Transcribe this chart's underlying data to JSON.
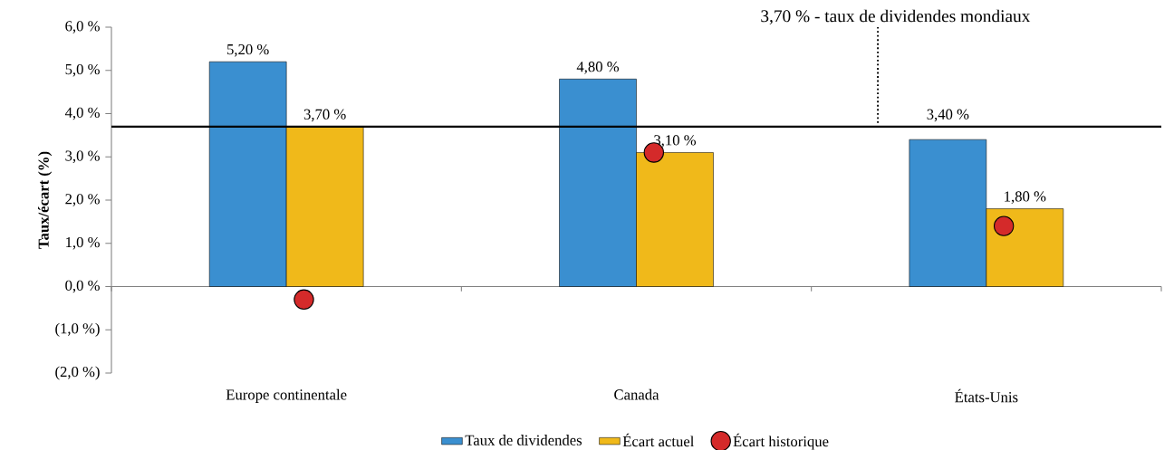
{
  "chart_data": {
    "type": "bar",
    "ylabel": "Taux/écart (%)",
    "categories": [
      "Europe continentale",
      "Canada",
      "États-Unis"
    ],
    "series": [
      {
        "name": "Taux de dividendes",
        "color": "#3a8fd0",
        "values": [
          5.2,
          4.8,
          3.4
        ],
        "value_labels": [
          "5,20 %",
          "4,80 %",
          "3,40 %"
        ]
      },
      {
        "name": "Écart actuel",
        "color": "#f0b91a",
        "values": [
          3.7,
          3.1,
          1.8
        ],
        "value_labels": [
          "3,70 %",
          "3,10 %",
          "1,80 %"
        ]
      },
      {
        "name": "Écart historique",
        "type": "scatter",
        "color": "#d42a2a",
        "marker": "circle",
        "x": [
          "Europe continentale",
          "Canada",
          "États-Unis"
        ],
        "values": [
          -0.3,
          3.1,
          1.4
        ]
      }
    ],
    "ylim": [
      -2,
      6
    ],
    "yticks": [
      {
        "value": -2,
        "label": "(2,0 %)"
      },
      {
        "value": -1,
        "label": "(1,0 %)"
      },
      {
        "value": 0,
        "label": "0,0 %"
      },
      {
        "value": 1,
        "label": "1,0 %"
      },
      {
        "value": 2,
        "label": "2,0 %"
      },
      {
        "value": 3,
        "label": "3,0 %"
      },
      {
        "value": 4,
        "label": "4,0 %"
      },
      {
        "value": 5,
        "label": "5,0 %"
      },
      {
        "value": 6,
        "label": "6,0 %"
      }
    ],
    "ref_lines": [
      {
        "axis": "y",
        "value": 3.7,
        "label": "3,70 % - taux de dividendes mondiaux",
        "color": "#000000"
      }
    ],
    "legend": "bottom"
  }
}
